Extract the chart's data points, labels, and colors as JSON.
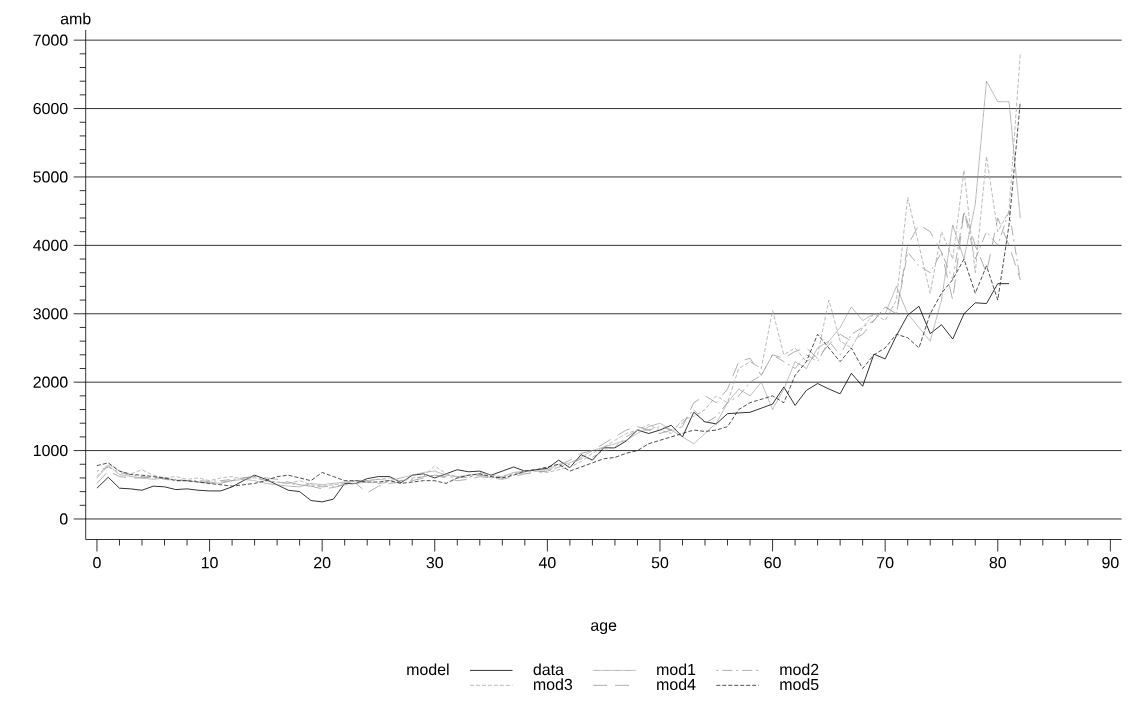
{
  "chart_data": {
    "type": "line",
    "xlabel": "age",
    "ylabel": "amb",
    "legend_title": "model",
    "legend": "bottom",
    "grid": "y",
    "x": [
      0,
      1,
      2,
      3,
      4,
      5,
      6,
      7,
      8,
      9,
      10,
      11,
      12,
      13,
      14,
      15,
      16,
      17,
      18,
      19,
      20,
      21,
      22,
      23,
      24,
      25,
      26,
      27,
      28,
      29,
      30,
      31,
      32,
      33,
      34,
      35,
      36,
      37,
      38,
      39,
      40,
      41,
      42,
      43,
      44,
      45,
      46,
      47,
      48,
      49,
      50,
      51,
      52,
      53,
      54,
      55,
      56,
      57,
      58,
      59,
      60,
      61,
      62,
      63,
      64,
      65,
      66,
      67,
      68,
      69,
      70,
      71,
      72,
      73,
      74,
      75,
      76,
      77,
      78,
      79,
      80,
      81,
      82
    ],
    "xlim": [
      -1,
      91
    ],
    "xticks": [
      0,
      10,
      20,
      30,
      40,
      50,
      60,
      70,
      80,
      90
    ],
    "ylim": [
      -300,
      7150
    ],
    "yticks": [
      0,
      1000,
      2000,
      3000,
      4000,
      5000,
      6000,
      7000
    ],
    "series": [
      {
        "name": "data",
        "color": "#000000",
        "line_style": "solid",
        "values": [
          450,
          610,
          450,
          440,
          420,
          480,
          470,
          430,
          440,
          420,
          410,
          410,
          470,
          560,
          640,
          580,
          500,
          420,
          400,
          270,
          250,
          290,
          520,
          520,
          590,
          620,
          620,
          530,
          640,
          660,
          600,
          660,
          720,
          690,
          700,
          640,
          700,
          760,
          700,
          720,
          740,
          860,
          750,
          940,
          860,
          1040,
          1040,
          1140,
          1300,
          1250,
          1300,
          1370,
          1200,
          1560,
          1420,
          1390,
          1540,
          1550,
          1560,
          1620,
          1680,
          1930,
          1660,
          1880,
          1980,
          1900,
          1830,
          2130,
          1940,
          2410,
          2340,
          2680,
          2980,
          3110,
          2710,
          2840,
          2630,
          3000,
          3160,
          3150,
          3440,
          3440,
          null
        ]
      },
      {
        "name": "mod1",
        "color": "#888888",
        "line_style": "dotted",
        "values": [
          600,
          780,
          650,
          620,
          600,
          580,
          600,
          570,
          560,
          540,
          540,
          520,
          560,
          580,
          560,
          520,
          500,
          480,
          470,
          520,
          500,
          520,
          540,
          560,
          560,
          580,
          560,
          600,
          640,
          680,
          700,
          640,
          620,
          640,
          660,
          600,
          620,
          680,
          700,
          720,
          720,
          800,
          820,
          900,
          1000,
          1050,
          1100,
          1150,
          1250,
          1350,
          1400,
          1300,
          1200,
          1100,
          1250,
          1400,
          1700,
          1900,
          1800,
          2000,
          1600,
          1900,
          2300,
          2200,
          2500,
          2600,
          2800,
          3100,
          2900,
          3000,
          3000,
          3400,
          3000,
          2800,
          2600,
          3200,
          4300,
          3800,
          4600,
          6400,
          6100,
          6100,
          4400
        ]
      },
      {
        "name": "mod2",
        "color": "#999999",
        "line_style": "dashdot",
        "values": [
          700,
          760,
          680,
          640,
          620,
          600,
          590,
          580,
          560,
          560,
          550,
          560,
          580,
          600,
          620,
          560,
          540,
          520,
          500,
          480,
          470,
          480,
          500,
          520,
          540,
          520,
          540,
          560,
          580,
          620,
          640,
          620,
          600,
          620,
          640,
          620,
          600,
          650,
          680,
          700,
          700,
          760,
          800,
          880,
          900,
          1000,
          1050,
          1200,
          1300,
          1300,
          1350,
          1300,
          1400,
          1600,
          1400,
          1500,
          1700,
          1800,
          2000,
          2100,
          2400,
          2300,
          2200,
          2400,
          2300,
          2600,
          2400,
          2700,
          2800,
          2900,
          3100,
          3000,
          3900,
          3700,
          3600,
          3900,
          3500,
          4500,
          3800,
          4200,
          4000,
          4500,
          3500
        ]
      },
      {
        "name": "mod3",
        "color": "#aaaaaa",
        "line_style": "dashed",
        "values": [
          620,
          800,
          700,
          660,
          720,
          640,
          600,
          620,
          580,
          600,
          560,
          600,
          620,
          580,
          600,
          560,
          540,
          520,
          560,
          500,
          480,
          500,
          520,
          560,
          560,
          580,
          600,
          560,
          600,
          620,
          780,
          660,
          620,
          600,
          680,
          640,
          620,
          660,
          700,
          700,
          680,
          720,
          760,
          840,
          960,
          1050,
          1150,
          1250,
          1300,
          1380,
          1300,
          1250,
          1450,
          1500,
          1600,
          1800,
          1700,
          2200,
          2300,
          2200,
          3050,
          2400,
          2500,
          2300,
          2400,
          3200,
          2600,
          2500,
          2800,
          3000,
          2900,
          3200,
          4700,
          4000,
          3300,
          4200,
          3800,
          5100,
          3600,
          5300,
          4200,
          4500,
          6800
        ]
      },
      {
        "name": "mod4",
        "color": "#999999",
        "line_style": "longdash",
        "values": [
          520,
          700,
          620,
          600,
          600,
          620,
          580,
          560,
          560,
          540,
          520,
          540,
          560,
          600,
          620,
          600,
          580,
          540,
          500,
          480,
          440,
          460,
          500,
          520,
          380,
          480,
          520,
          540,
          560,
          600,
          640,
          600,
          560,
          580,
          620,
          600,
          580,
          620,
          660,
          680,
          700,
          780,
          860,
          960,
          1000,
          1100,
          1200,
          1300,
          1350,
          1300,
          1250,
          1300,
          1350,
          1700,
          1800,
          1700,
          1900,
          2300,
          2350,
          2100,
          2400,
          2350,
          2450,
          2500,
          2350,
          2550,
          2700,
          2600,
          2700,
          2900,
          3100,
          3000,
          4000,
          4300,
          4200,
          3900,
          3200,
          4500,
          4000,
          3600,
          4400,
          4000,
          3500
        ]
      },
      {
        "name": "mod5",
        "color": "#222222",
        "line_style": "dashed",
        "values": [
          780,
          820,
          700,
          650,
          640,
          620,
          600,
          560,
          560,
          540,
          520,
          500,
          480,
          500,
          520,
          560,
          620,
          640,
          600,
          560,
          680,
          620,
          560,
          560,
          540,
          540,
          560,
          520,
          540,
          560,
          560,
          520,
          600,
          640,
          660,
          620,
          600,
          640,
          700,
          720,
          760,
          800,
          700,
          760,
          820,
          880,
          900,
          960,
          1000,
          1100,
          1150,
          1200,
          1250,
          1300,
          1280,
          1300,
          1350,
          1600,
          1700,
          1750,
          1800,
          1700,
          2100,
          2300,
          2700,
          2500,
          2300,
          2500,
          2200,
          2400,
          2500,
          2700,
          2650,
          2500,
          3000,
          3300,
          3500,
          3800,
          3300,
          3700,
          3200,
          4300,
          6100
        ]
      }
    ]
  }
}
